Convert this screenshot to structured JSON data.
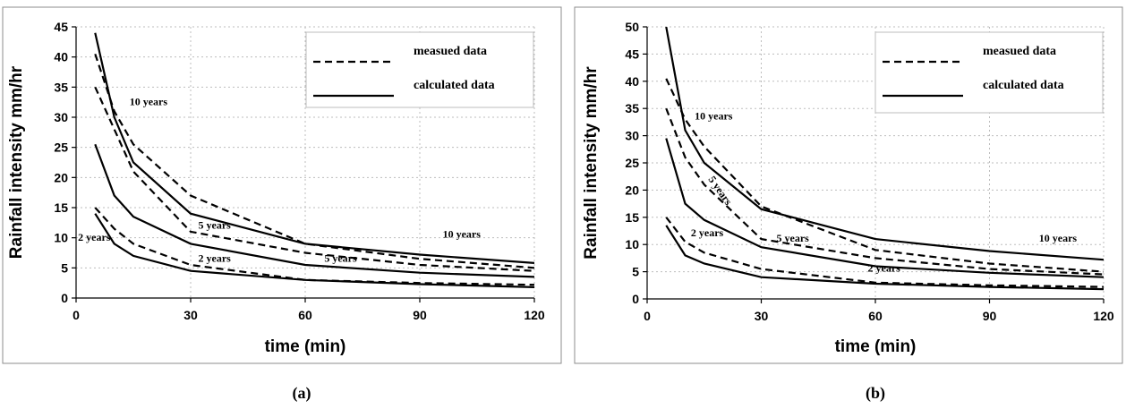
{
  "chart_data": [
    {
      "id": "a",
      "type": "line",
      "caption": "(a)",
      "xlabel": "time (min)",
      "ylabel": "Rainfall intensity  mm/hr",
      "xlim": [
        0,
        120
      ],
      "ylim": [
        0,
        45
      ],
      "xticks": [
        0,
        30,
        60,
        90,
        120
      ],
      "yticks": [
        0,
        5,
        10,
        15,
        20,
        25,
        30,
        35,
        40,
        45
      ],
      "grid": true,
      "legend": {
        "position": "top-right",
        "entries": [
          {
            "label": "measued data",
            "style": "dashed"
          },
          {
            "label": "calculated data",
            "style": "solid"
          }
        ]
      },
      "series": [
        {
          "style": "dashed",
          "x": [
            5,
            10,
            15,
            30,
            60,
            90,
            120
          ],
          "y": [
            40.5,
            31,
            25.5,
            17,
            9,
            6.5,
            5
          ]
        },
        {
          "style": "dashed",
          "x": [
            5,
            10,
            15,
            30,
            60,
            90,
            120
          ],
          "y": [
            35,
            28,
            21,
            11,
            7.5,
            5.5,
            4.5
          ]
        },
        {
          "style": "dashed",
          "x": [
            5,
            10,
            15,
            30,
            60,
            90,
            120
          ],
          "y": [
            15,
            11.5,
            9,
            5.5,
            3,
            2.5,
            2.2
          ]
        },
        {
          "style": "solid",
          "x": [
            5,
            10,
            15,
            30,
            60,
            90,
            120
          ],
          "y": [
            44,
            30,
            22.5,
            14,
            9,
            7.2,
            5.8
          ]
        },
        {
          "style": "solid",
          "x": [
            5,
            10,
            15,
            30,
            60,
            90,
            120
          ],
          "y": [
            25.5,
            17,
            13.5,
            9,
            5.5,
            4.2,
            3.5
          ]
        },
        {
          "style": "solid",
          "x": [
            5,
            10,
            15,
            30,
            60,
            90,
            120
          ],
          "y": [
            14,
            9,
            7,
            4.5,
            3,
            2.3,
            1.8
          ]
        }
      ],
      "annotations": [
        {
          "text": "10 years",
          "x": 14,
          "y": 32
        },
        {
          "text": "5 years",
          "x": 32,
          "y": 11.5
        },
        {
          "text": "2 years",
          "x": 32,
          "y": 6
        },
        {
          "text": "2 years",
          "x": 0.5,
          "y": 9.5
        },
        {
          "text": "5 years",
          "x": 65,
          "y": 6
        },
        {
          "text": "10 years",
          "x": 96,
          "y": 10
        }
      ]
    },
    {
      "id": "b",
      "type": "line",
      "caption": "(b)",
      "xlabel": "time (min)",
      "ylabel": "Rainfall intensity  mm/hr",
      "xlim": [
        0,
        120
      ],
      "ylim": [
        0,
        50
      ],
      "xticks": [
        0,
        30,
        60,
        90,
        120
      ],
      "yticks": [
        0,
        5,
        10,
        15,
        20,
        25,
        30,
        35,
        40,
        45,
        50
      ],
      "grid": true,
      "legend": {
        "position": "top-right",
        "entries": [
          {
            "label": "measued data",
            "style": "dashed"
          },
          {
            "label": "calculated data",
            "style": "solid"
          }
        ]
      },
      "series": [
        {
          "style": "dashed",
          "x": [
            5,
            10,
            15,
            30,
            60,
            90,
            120
          ],
          "y": [
            40.5,
            33,
            28,
            17,
            9,
            6.5,
            5
          ]
        },
        {
          "style": "dashed",
          "x": [
            5,
            10,
            15,
            30,
            60,
            90,
            120
          ],
          "y": [
            35,
            26,
            21,
            11,
            7.5,
            5.5,
            4.5
          ]
        },
        {
          "style": "dashed",
          "x": [
            5,
            10,
            15,
            30,
            60,
            90,
            120
          ],
          "y": [
            15,
            10.5,
            8.5,
            5.5,
            3,
            2.5,
            2.2
          ]
        },
        {
          "style": "solid",
          "x": [
            5,
            10,
            15,
            30,
            60,
            90,
            120
          ],
          "y": [
            50,
            31,
            25,
            16.5,
            11,
            8.8,
            7.2
          ]
        },
        {
          "style": "solid",
          "x": [
            5,
            10,
            15,
            30,
            60,
            90,
            120
          ],
          "y": [
            29.5,
            17.5,
            14.5,
            9.5,
            6,
            4.8,
            4
          ]
        },
        {
          "style": "solid",
          "x": [
            5,
            10,
            15,
            30,
            60,
            90,
            120
          ],
          "y": [
            13.5,
            8,
            6.5,
            4,
            2.8,
            2.2,
            1.8
          ]
        }
      ],
      "annotations": [
        {
          "text": "10 years",
          "x": 12.5,
          "y": 33
        },
        {
          "text": "5 years",
          "x": 16,
          "y": 22,
          "rotate": 55
        },
        {
          "text": "2 years",
          "x": 11.5,
          "y": 11.5
        },
        {
          "text": "5 years",
          "x": 34,
          "y": 10.5
        },
        {
          "text": "2 years",
          "x": 58,
          "y": 5
        },
        {
          "text": "10 years",
          "x": 103,
          "y": 10.5
        }
      ]
    }
  ]
}
